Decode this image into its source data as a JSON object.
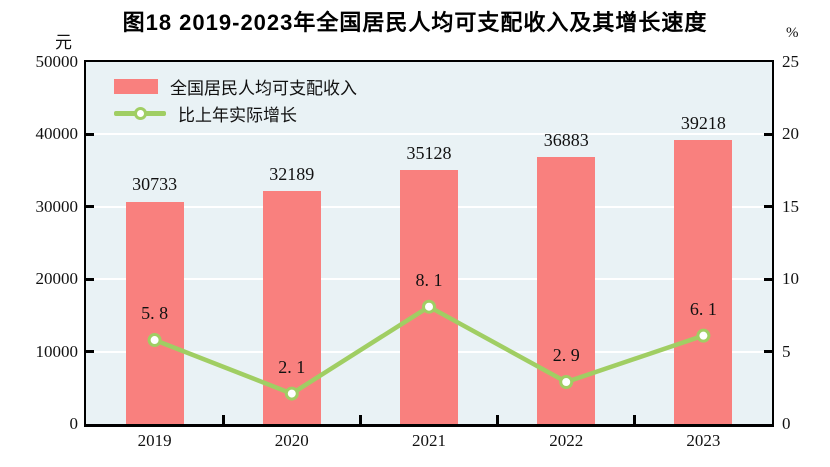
{
  "title": "图18  2019-2023年全国居民人均可支配收入及其增长速度",
  "left_axis_unit": "元",
  "right_axis_unit": "%",
  "legend": {
    "bar_label": "全国居民人均可支配收入",
    "line_label": "比上年实际增长"
  },
  "colors": {
    "bar": "#F9807E",
    "line": "#A0CE63",
    "marker_fill": "#FFFFFF",
    "plot_bg": "#E9F2F5",
    "grid": "#FFFFFF",
    "axis": "#000000"
  },
  "chart_data": {
    "type": "combo",
    "categories": [
      "2019",
      "2020",
      "2021",
      "2022",
      "2023"
    ],
    "series": [
      {
        "name": "全国居民人均可支配收入",
        "type": "bar",
        "axis": "left",
        "values": [
          30733,
          32189,
          35128,
          36883,
          39218
        ],
        "labels": [
          "30733",
          "32189",
          "35128",
          "36883",
          "39218"
        ]
      },
      {
        "name": "比上年实际增长",
        "type": "line",
        "axis": "right",
        "values": [
          5.8,
          2.1,
          8.1,
          2.9,
          6.1
        ],
        "labels": [
          "5. 8",
          "2. 1",
          "8. 1",
          "2. 9",
          "6. 1"
        ]
      }
    ],
    "left_axis": {
      "unit": "元",
      "min": 0,
      "max": 50000,
      "step": 10000,
      "ticks": [
        0,
        10000,
        20000,
        30000,
        40000,
        50000
      ]
    },
    "right_axis": {
      "unit": "%",
      "min": 0,
      "max": 25,
      "step": 5,
      "ticks": [
        0,
        5,
        10,
        15,
        20,
        25
      ]
    },
    "grid": true,
    "legend_position": "top-left"
  }
}
